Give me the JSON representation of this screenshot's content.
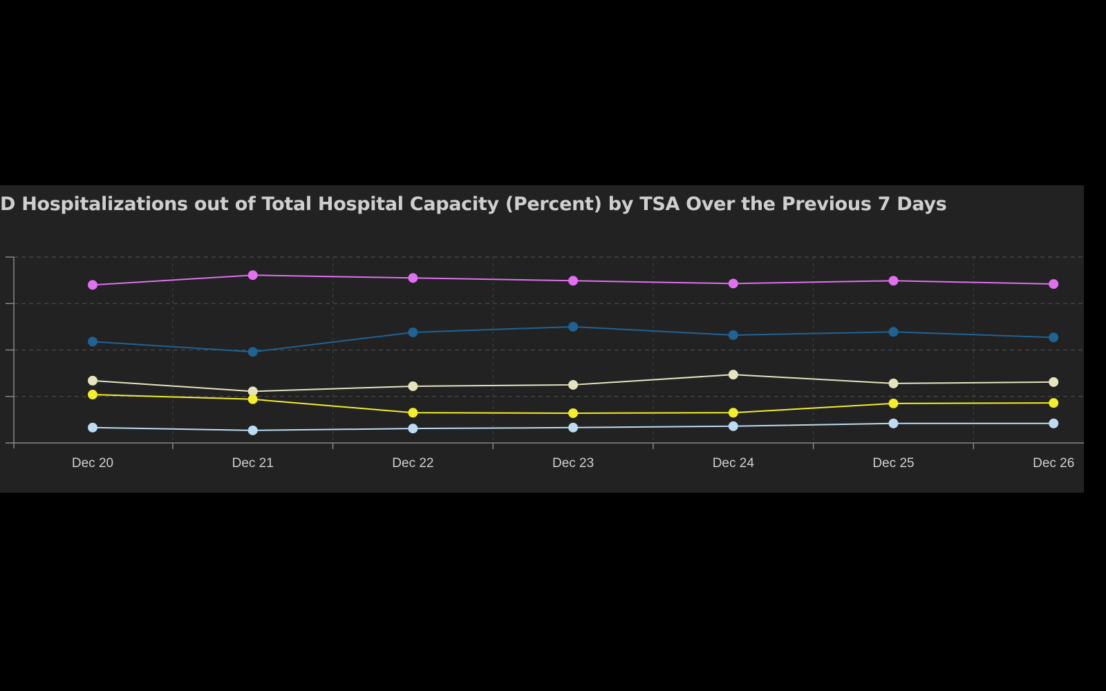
{
  "chart_data": {
    "type": "line",
    "title": "D Hospitalizations out of Total Hospital Capacity (Percent) by TSA Over the Previous 7 Days",
    "xlabel": "",
    "ylabel": "",
    "categories": [
      "Dec 20",
      "Dec 21",
      "Dec 22",
      "Dec 23",
      "Dec 24",
      "Dec 25",
      "Dec 26"
    ],
    "ylim": [
      0,
      4
    ],
    "y_tick_labels": [],
    "grid": true,
    "legend": "none",
    "series": [
      {
        "color": "#e070f0",
        "values": [
          3.4,
          3.61,
          3.55,
          3.49,
          3.43,
          3.49,
          3.42
        ]
      },
      {
        "color": "#1f6396",
        "values": [
          2.18,
          1.96,
          2.38,
          2.5,
          2.32,
          2.39,
          2.27
        ]
      },
      {
        "color": "#e6e4bf",
        "values": [
          1.34,
          1.11,
          1.22,
          1.25,
          1.47,
          1.28,
          1.31
        ]
      },
      {
        "color": "#f2ee2a",
        "values": [
          1.04,
          0.94,
          0.65,
          0.64,
          0.65,
          0.85,
          0.86
        ]
      },
      {
        "color": "#bcdcf2",
        "values": [
          0.33,
          0.27,
          0.31,
          0.33,
          0.36,
          0.42,
          0.42
        ]
      }
    ]
  }
}
